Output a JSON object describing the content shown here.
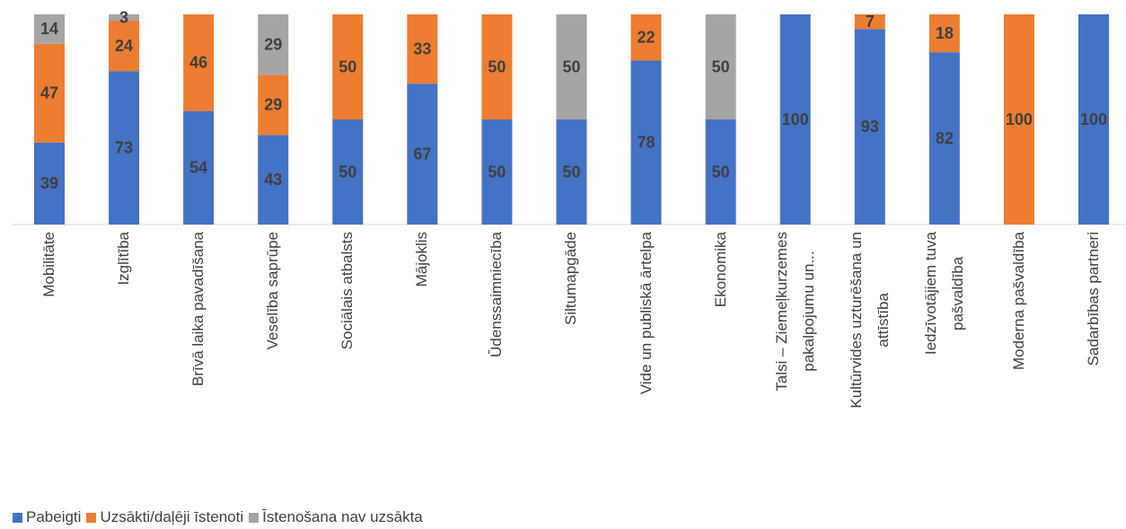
{
  "chart_data": {
    "type": "bar",
    "stack": "percent",
    "categories": [
      "Mobilitāte",
      "Izglītība",
      "Brīvā laika pavadīšana",
      "Veselība saprūpe",
      "Sociālais atbalsts",
      "Mājoklis",
      "Ūdenssaimniecība",
      "Siltumapgāde",
      "Vide un publiskā ārtelpa",
      "Ekonomika",
      "Talsi – Ziemeļkurzemes\npakalpojumu un...",
      "Kultūrvides uzturēšana un\nattīstība",
      "Iedzīvotājiem tuva\npašvaldība",
      "Moderna pašvaldība",
      "Sadarbības partneri"
    ],
    "series": [
      {
        "name": "Pabeigti",
        "color": "#4472c4",
        "values": [
          39,
          73,
          54,
          43,
          50,
          67,
          50,
          50,
          78,
          50,
          100,
          93,
          82,
          null,
          100
        ]
      },
      {
        "name": "Uzsākti/daļēji īstenoti",
        "color": "#ed7d31",
        "values": [
          47,
          24,
          46,
          29,
          50,
          33,
          50,
          null,
          22,
          null,
          null,
          7,
          18,
          100,
          null
        ]
      },
      {
        "name": "Īstenošana nav uzsākta",
        "color": "#a5a5a5",
        "values": [
          14,
          3,
          null,
          29,
          null,
          null,
          null,
          50,
          null,
          50,
          null,
          null,
          null,
          null,
          null
        ]
      }
    ],
    "legend": "bottom-left"
  }
}
